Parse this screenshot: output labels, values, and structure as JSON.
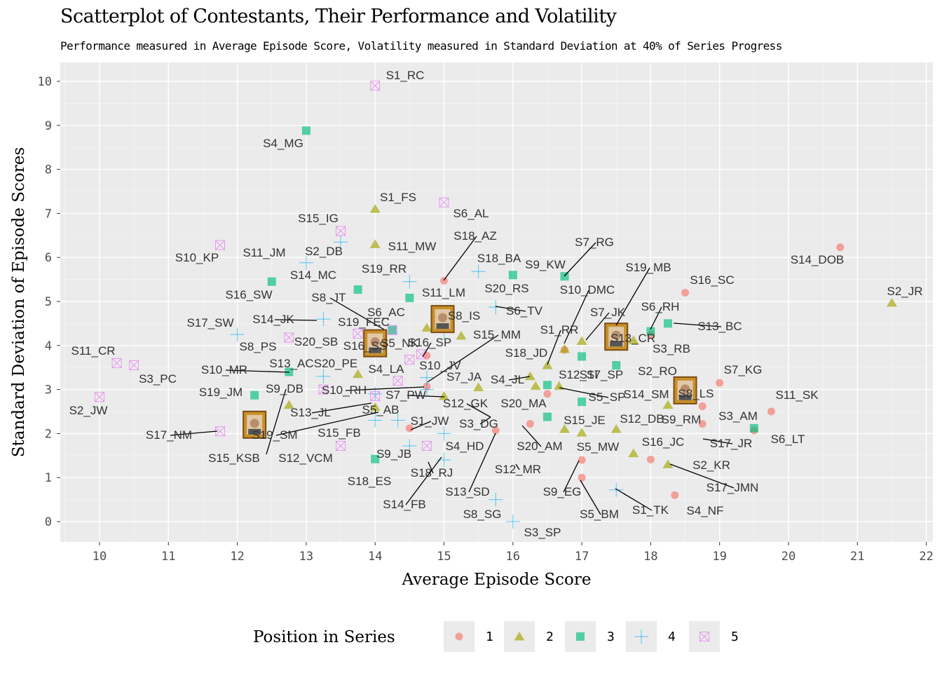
{
  "title": "Scatterplot of Contestants, Their Performance and Volatility",
  "subtitle": "Performance measured in Average Episode Score, Volatility measured in Standard Deviation at 40% of Series Progress",
  "chart_data": {
    "type": "scatter",
    "title": "Scatterplot of Contestants, Their Performance and Volatility",
    "subtitle": "Performance measured in Average Episode Score, Volatility measured in Standard Deviation at 40% of Series Progress",
    "xlabel": "Average Episode Score",
    "ylabel": "Standard Deviation of Episode Scores",
    "xlim": [
      9.5,
      22.05
    ],
    "ylim": [
      -0.45,
      10.4
    ],
    "x_ticks": [
      "10",
      "11",
      "12",
      "13",
      "14",
      "15",
      "16",
      "17",
      "18",
      "19",
      "20",
      "21",
      "22"
    ],
    "y_ticks": [
      "0",
      "1",
      "2",
      "3",
      "4",
      "5",
      "6",
      "7",
      "8",
      "9",
      "10"
    ],
    "grid": true,
    "legend_title": "Position in Series",
    "legend_position": "bottom",
    "series": [
      {
        "name": "1",
        "color": "#F8766D",
        "shape": "circle",
        "points": [
          {
            "label": "S1_RR",
            "x": 16.75,
            "y": 3.9
          },
          {
            "label": "S2_RO",
            "x": 18.75,
            "y": 2.62
          },
          {
            "label": "S3_RB",
            "x": 18,
            "y": 4.25
          },
          {
            "label": "S4_NF",
            "x": 18.35,
            "y": 0.6
          },
          {
            "label": "S5_BM",
            "x": 17,
            "y": 1.0
          },
          {
            "label": "S6_LT",
            "x": 19.5,
            "y": 2.07
          },
          {
            "label": "S7_KG",
            "x": 19,
            "y": 3.15
          },
          {
            "label": "S8_LS",
            "x": 18.5,
            "y": 2.98
          },
          {
            "label": "S9_EG",
            "x": 17,
            "y": 1.4
          },
          {
            "label": "S10_RH",
            "x": 14.75,
            "y": 3.07
          },
          {
            "label": "S11_SK",
            "x": 19.75,
            "y": 2.5
          },
          {
            "label": "S12_MR",
            "x": 16.25,
            "y": 2.22
          },
          {
            "label": "S13_SD",
            "x": 15.75,
            "y": 2.07
          },
          {
            "label": "S14_DOB",
            "x": 20.75,
            "y": 6.23
          },
          {
            "label": "S15_SP",
            "x": 14.75,
            "y": 3.77
          },
          {
            "label": "S16_SC",
            "x": 18.5,
            "y": 5.2
          },
          {
            "label": "S17_JR",
            "x": 18.75,
            "y": 2.22
          },
          {
            "label": "S18_AZ",
            "x": 15,
            "y": 5.47
          },
          {
            "label": "S1_JW",
            "x": 14.5,
            "y": 2.12
          },
          {
            "label": "S16_JC",
            "x": 18,
            "y": 1.41
          },
          {
            "label": "S5_SP",
            "x": 16.5,
            "y": 2.9
          }
        ]
      },
      {
        "name": "2",
        "color": "#A3A500",
        "shape": "triangle",
        "points": [
          {
            "label": "S1_FS",
            "x": 14,
            "y": 7.1
          },
          {
            "label": "S2_JR",
            "x": 21.5,
            "y": 4.97
          },
          {
            "label": "S2_KR",
            "x": 18.25,
            "y": 1.3
          },
          {
            "label": "S3_DG",
            "x": 15,
            "y": 2.85
          },
          {
            "label": "S4_JL",
            "x": 15.5,
            "y": 3.05
          },
          {
            "label": "S5_MW",
            "x": 17,
            "y": 2.02
          },
          {
            "label": "S6_IS",
            "x": 15,
            "y": 4.45
          },
          {
            "label": "S7_JK",
            "x": 17,
            "y": 4.1
          },
          {
            "label": "S8_IS",
            "x": 14.75,
            "y": 4.4
          },
          {
            "label": "S9_DB",
            "x": 12.75,
            "y": 2.65
          },
          {
            "label": "S10_DMC",
            "x": 16.75,
            "y": 3.92
          },
          {
            "label": "S11_MW",
            "x": 14,
            "y": 6.3
          },
          {
            "label": "S12_SD",
            "x": 16.5,
            "y": 3.55
          },
          {
            "label": "S13_JL",
            "x": 14,
            "y": 2.6
          },
          {
            "label": "S14_SM",
            "x": 18.25,
            "y": 2.65
          },
          {
            "label": "S15_JE",
            "x": 16.75,
            "y": 2.1
          },
          {
            "label": "S15_MM",
            "x": 15.25,
            "y": 4.22
          },
          {
            "label": "S17_JMN",
            "x": 17.75,
            "y": 1.55
          },
          {
            "label": "S18_JD",
            "x": 16.25,
            "y": 3.3
          },
          {
            "label": "S19_MB",
            "x": 17.75,
            "y": 4.12
          },
          {
            "label": "S20_MA",
            "x": 16.33,
            "y": 3.08
          },
          {
            "label": "S12_DB",
            "x": 17.5,
            "y": 2.1
          },
          {
            "label": "S20_PE",
            "x": 13.75,
            "y": 3.35
          },
          {
            "label": "S12_SI",
            "x": 16.67,
            "y": 3.08
          }
        ]
      },
      {
        "name": "3",
        "color": "#00BF7D",
        "shape": "square",
        "points": [
          {
            "label": "S4_MG",
            "x": 13,
            "y": 8.88
          },
          {
            "label": "S5_NK",
            "x": 14.25,
            "y": 4.35
          },
          {
            "label": "S6_RH",
            "x": 18,
            "y": 4.32
          },
          {
            "label": "S7_RG",
            "x": 16.75,
            "y": 5.57
          },
          {
            "label": "S8_JT",
            "x": 13.75,
            "y": 5.27
          },
          {
            "label": "S9_JB",
            "x": 14,
            "y": 1.42
          },
          {
            "label": "S9_KW",
            "x": 16,
            "y": 5.6
          },
          {
            "label": "S9_RM",
            "x": 19.5,
            "y": 2.12
          },
          {
            "label": "S11_LM",
            "x": 14.5,
            "y": 5.08
          },
          {
            "label": "S13_AC",
            "x": 12.75,
            "y": 3.4
          },
          {
            "label": "S13_BC",
            "x": 18.25,
            "y": 4.5
          },
          {
            "label": "S13_CR",
            "x": 17,
            "y": 3.75
          },
          {
            "label": "S16_SW",
            "x": 12.5,
            "y": 5.45
          },
          {
            "label": "S17_SP",
            "x": 17.5,
            "y": 3.55
          },
          {
            "label": "S19_JM",
            "x": 12.25,
            "y": 2.87
          },
          {
            "label": "S20_RS",
            "x": 16.5,
            "y": 2.38
          },
          {
            "label": "S12_GK",
            "x": 16.5,
            "y": 3.1
          },
          {
            "label": "S5_SP2",
            "x": 17,
            "y": 2.72
          }
        ]
      },
      {
        "name": "4",
        "color": "#00B0F6",
        "shape": "plus",
        "points": [
          {
            "label": "S1_TK",
            "x": 17.5,
            "y": 0.72
          },
          {
            "label": "S2_DB",
            "x": 13.5,
            "y": 6.35
          },
          {
            "label": "S3_SP",
            "x": 16,
            "y": 0.0
          },
          {
            "label": "S4_HD",
            "x": 15,
            "y": 2.0
          },
          {
            "label": "S5_AB",
            "x": 14.33,
            "y": 2.3
          },
          {
            "label": "S6_TV",
            "x": 15.75,
            "y": 4.87
          },
          {
            "label": "S7_JA",
            "x": 14.75,
            "y": 3.27
          },
          {
            "label": "S8_SG",
            "x": 15.75,
            "y": 0.5
          },
          {
            "label": "S10_JV",
            "x": 14.75,
            "y": 3.0
          },
          {
            "label": "S11_JM",
            "x": 13,
            "y": 5.88
          },
          {
            "label": "S12_VCM",
            "x": 14,
            "y": 2.3
          },
          {
            "label": "S14_FB",
            "x": 15,
            "y": 1.4
          },
          {
            "label": "S14_JK",
            "x": 13.25,
            "y": 4.6
          },
          {
            "label": "S14_MC",
            "x": 14.5,
            "y": 5.45
          },
          {
            "label": "S15_FB",
            "x": 14.5,
            "y": 1.72
          },
          {
            "label": "S17_SW",
            "x": 12,
            "y": 4.25
          },
          {
            "label": "S18_BA",
            "x": 15.5,
            "y": 5.68
          },
          {
            "label": "S18_ES",
            "x": 14.0,
            "y": 2.9
          },
          {
            "label": "S19_FEC",
            "x": 15,
            "y": 4.3
          },
          {
            "label": "S13_AC2",
            "x": 13.25,
            "y": 3.3
          }
        ]
      },
      {
        "name": "5",
        "color": "#E76BF3",
        "shape": "boxx",
        "points": [
          {
            "label": "S1_RC",
            "x": 14,
            "y": 9.9
          },
          {
            "label": "S2_JW",
            "x": 10,
            "y": 2.83
          },
          {
            "label": "S3_PC",
            "x": 10.5,
            "y": 3.55
          },
          {
            "label": "S6_AC",
            "x": 14.25,
            "y": 4.35
          },
          {
            "label": "S6_AL",
            "x": 15,
            "y": 7.25
          },
          {
            "label": "S7_PW",
            "x": 14,
            "y": 2.85
          },
          {
            "label": "S8_PS",
            "x": 12.75,
            "y": 4.18
          },
          {
            "label": "S10_KP",
            "x": 11.75,
            "y": 6.28
          },
          {
            "label": "S11_CR",
            "x": 10.25,
            "y": 3.6
          },
          {
            "label": "S15_IG",
            "x": 13.5,
            "y": 6.6
          },
          {
            "label": "S15_KSB",
            "x": 13.5,
            "y": 1.72
          },
          {
            "label": "S16_SB",
            "x": 13.75,
            "y": 4.27
          },
          {
            "label": "S16_SS",
            "x": 14.5,
            "y": 3.68
          },
          {
            "label": "S17_NM",
            "x": 11.75,
            "y": 2.05
          },
          {
            "label": "S18_RJ",
            "x": 14.75,
            "y": 1.72
          },
          {
            "label": "S19_RR",
            "x": 14.67,
            "y": 3.8
          },
          {
            "label": "S20_SB",
            "x": 13.25,
            "y": 3.0
          },
          {
            "label": "S10_MR",
            "x": 14.33,
            "y": 3.2
          }
        ]
      }
    ],
    "labels": [
      {
        "text": "S1_RC"
      },
      {
        "text": "S4_MG"
      },
      {
        "text": "S1_FS"
      },
      {
        "text": "S6_AL"
      },
      {
        "text": "S15_IG"
      },
      {
        "text": "S18_AZ"
      },
      {
        "text": "S7_RG"
      },
      {
        "text": "S10_KP"
      },
      {
        "text": "S11_JM"
      },
      {
        "text": "S2_DB"
      },
      {
        "text": "S11_MW"
      },
      {
        "text": "S14_DOB"
      },
      {
        "text": "S14_MC"
      },
      {
        "text": "S19_RR"
      },
      {
        "text": "S18_BA"
      },
      {
        "text": "S9_KW"
      },
      {
        "text": "S19_MB"
      },
      {
        "text": "S16_SW"
      },
      {
        "text": "S11_LM"
      },
      {
        "text": "S20_RS"
      },
      {
        "text": "S10_DMC"
      },
      {
        "text": "S16_SC"
      },
      {
        "text": "S2_JR"
      },
      {
        "text": "S8_JT"
      },
      {
        "text": "S6_AC"
      },
      {
        "text": "S6_TV"
      },
      {
        "text": "S6_RH"
      },
      {
        "text": "S14_JK"
      },
      {
        "text": "S19_FEC"
      },
      {
        "text": "S8_IS"
      },
      {
        "text": "S7_JK"
      },
      {
        "text": "S17_SW"
      },
      {
        "text": "S15_MM"
      },
      {
        "text": "S13_BC"
      },
      {
        "text": "S1_RR"
      },
      {
        "text": "S20_SB"
      },
      {
        "text": "S16_SS"
      },
      {
        "text": "S5_NK"
      },
      {
        "text": "S16_SP"
      },
      {
        "text": "S13_CR"
      },
      {
        "text": "S3_RB"
      },
      {
        "text": "S11_CR"
      },
      {
        "text": "S8_PS"
      },
      {
        "text": "S18_JD"
      },
      {
        "text": "S3_PC"
      },
      {
        "text": "S10_MR"
      },
      {
        "text": "S13_AC"
      },
      {
        "text": "S20_PE"
      },
      {
        "text": "S4_LA"
      },
      {
        "text": "S10_JV"
      },
      {
        "text": "S12_SI"
      },
      {
        "text": "S17_SP"
      },
      {
        "text": "S2_RO"
      },
      {
        "text": "S7_KG"
      },
      {
        "text": "S7_JA"
      },
      {
        "text": "S4_JL"
      },
      {
        "text": "S19_JM"
      },
      {
        "text": "S9_DB"
      },
      {
        "text": "S10_RH"
      },
      {
        "text": "S7_PW"
      },
      {
        "text": "S12_GK"
      },
      {
        "text": "S20_MA"
      },
      {
        "text": "S5_SP"
      },
      {
        "text": "S14_SM"
      },
      {
        "text": "S8_LS"
      },
      {
        "text": "S11_SK"
      },
      {
        "text": "S2_JW"
      },
      {
        "text": "S13_JL"
      },
      {
        "text": "S5_AB"
      },
      {
        "text": "S3_DG"
      },
      {
        "text": "S15_JE"
      },
      {
        "text": "S12_DB"
      },
      {
        "text": "S9_RM"
      },
      {
        "text": "S3_AM"
      },
      {
        "text": "S17_NM"
      },
      {
        "text": "S19_SM"
      },
      {
        "text": "S15_FB"
      },
      {
        "text": "S1_JW"
      },
      {
        "text": "S6_LT"
      },
      {
        "text": "S17_JR"
      },
      {
        "text": "S15_KSB"
      },
      {
        "text": "S12_VCM"
      },
      {
        "text": "S9_JB"
      },
      {
        "text": "S4_HD"
      },
      {
        "text": "S20_AM"
      },
      {
        "text": "S16_JC"
      },
      {
        "text": "S18_RJ"
      },
      {
        "text": "S5_MW"
      },
      {
        "text": "S2_KR"
      },
      {
        "text": "S18_ES"
      },
      {
        "text": "S12_MR"
      },
      {
        "text": "S17_JMN"
      },
      {
        "text": "S14_FB"
      },
      {
        "text": "S13_SD"
      },
      {
        "text": "S9_EG"
      },
      {
        "text": "S1_TK"
      },
      {
        "text": "S5_BM"
      },
      {
        "text": "S4_NF"
      },
      {
        "text": "S8_SG"
      },
      {
        "text": "S3_SP"
      }
    ],
    "legend_items": [
      {
        "label": "1",
        "color": "#F8766D",
        "shape": "circle"
      },
      {
        "label": "2",
        "color": "#A3A500",
        "shape": "triangle"
      },
      {
        "label": "3",
        "color": "#00BF7D",
        "shape": "square"
      },
      {
        "label": "4",
        "color": "#00B0F6",
        "shape": "plus"
      },
      {
        "label": "5",
        "color": "#E76BF3",
        "shape": "boxx"
      }
    ]
  }
}
